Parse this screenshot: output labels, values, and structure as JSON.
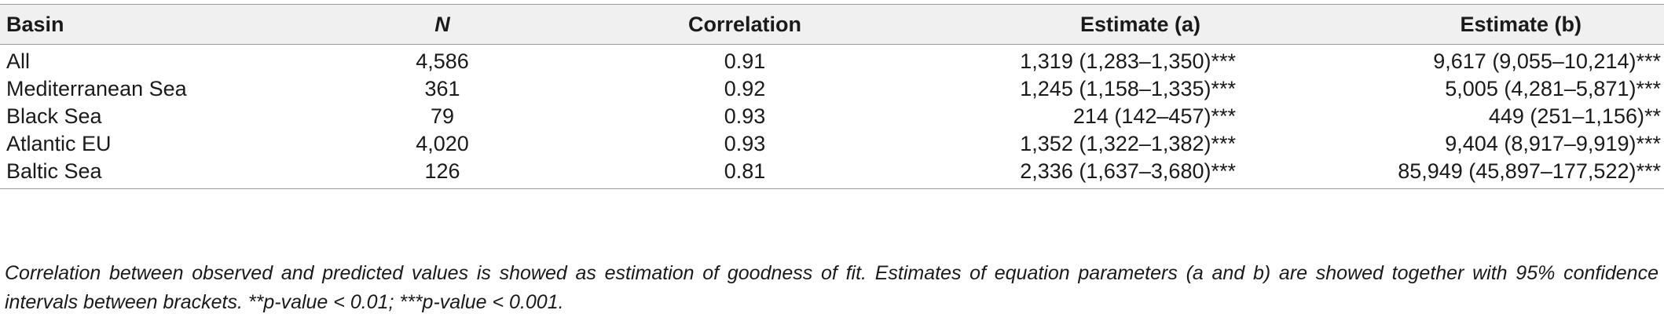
{
  "table": {
    "headers": {
      "basin": "Basin",
      "n": "N",
      "correlation": "Correlation",
      "estimate_a": "Estimate (a)",
      "estimate_b": "Estimate (b)"
    },
    "rows": [
      {
        "basin": "All",
        "n": "4,586",
        "correlation": "0.91",
        "estimate_a": "1,319 (1,283–1,350)***",
        "estimate_b": "9,617 (9,055–10,214)***"
      },
      {
        "basin": "Mediterranean Sea",
        "n": "361",
        "correlation": "0.92",
        "estimate_a": "1,245 (1,158–1,335)***",
        "estimate_b": "5,005 (4,281–5,871)***"
      },
      {
        "basin": "Black Sea",
        "n": "79",
        "correlation": "0.93",
        "estimate_a": "214 (142–457)***",
        "estimate_b": "449 (251–1,156)**"
      },
      {
        "basin": "Atlantic EU",
        "n": "4,020",
        "correlation": "0.93",
        "estimate_a": "1,352 (1,322–1,382)***",
        "estimate_b": "9,404 (8,917–9,919)***"
      },
      {
        "basin": "Baltic Sea",
        "n": "126",
        "correlation": "0.81",
        "estimate_a": "2,336 (1,637–3,680)***",
        "estimate_b": "85,949 (45,897–177,522)***"
      }
    ]
  },
  "footnote": "Correlation between observed and predicted values is showed as estimation of goodness of fit. Estimates of equation parameters (a and b) are showed together with 95% confidence intervals between brackets. **p-value < 0.01; ***p-value < 0.001."
}
